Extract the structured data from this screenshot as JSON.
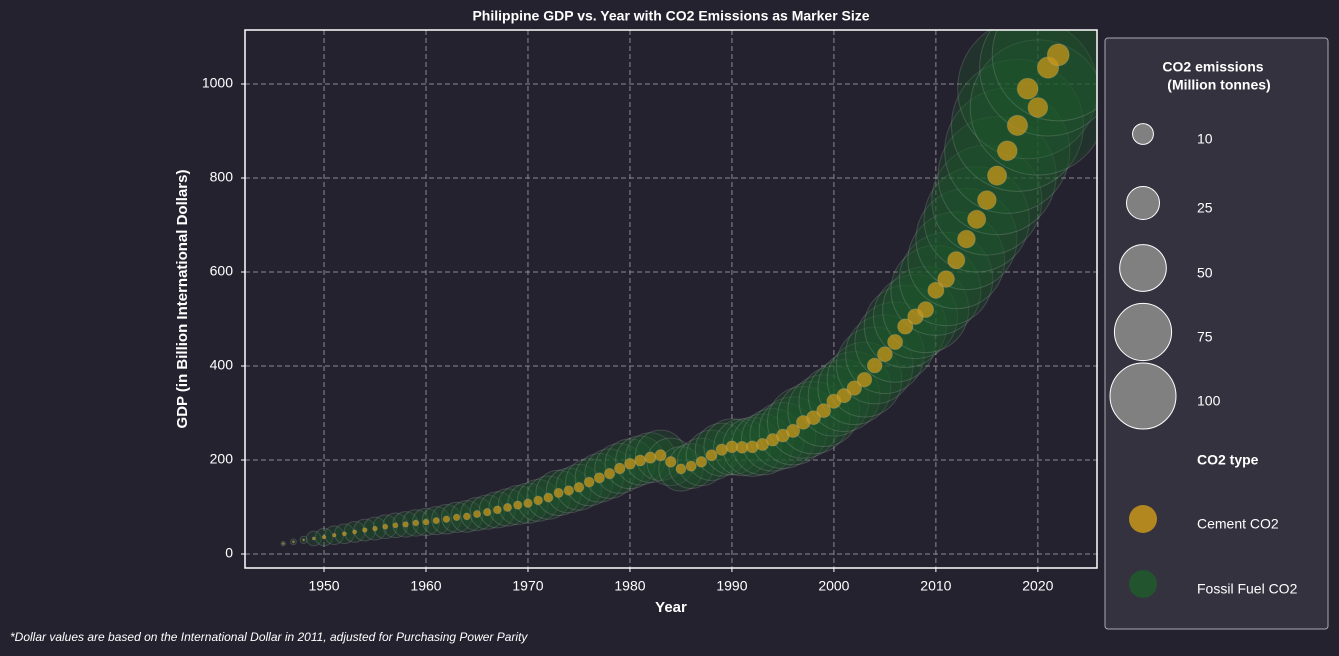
{
  "chart_data": {
    "type": "bubble",
    "title": "Philippine GDP vs. Year with CO2 Emissions as Marker Size",
    "x_label": "Year",
    "y_label": "GDP (in Billion International Dollars)",
    "footnote": "*Dollar values are based on the International Dollar in 2011, adjusted for Purchasing Power Parity",
    "x": [
      1946,
      1947,
      1948,
      1949,
      1950,
      1951,
      1952,
      1953,
      1954,
      1955,
      1956,
      1957,
      1958,
      1959,
      1960,
      1961,
      1962,
      1963,
      1964,
      1965,
      1966,
      1967,
      1968,
      1969,
      1970,
      1971,
      1972,
      1973,
      1974,
      1975,
      1976,
      1977,
      1978,
      1979,
      1980,
      1981,
      1982,
      1983,
      1984,
      1985,
      1986,
      1987,
      1988,
      1989,
      1990,
      1991,
      1992,
      1993,
      1994,
      1995,
      1996,
      1997,
      1998,
      1999,
      2000,
      2001,
      2002,
      2003,
      2004,
      2005,
      2006,
      2007,
      2008,
      2009,
      2010,
      2011,
      2012,
      2013,
      2014,
      2015,
      2016,
      2017,
      2018,
      2019,
      2020,
      2021,
      2022
    ],
    "values": [
      22,
      26,
      30,
      33,
      36,
      40,
      43,
      47,
      51,
      54,
      58,
      61,
      63,
      66,
      68,
      71,
      74,
      78,
      80,
      85,
      89,
      94,
      99,
      104,
      108,
      114,
      120,
      130,
      135,
      142,
      153,
      162,
      171,
      182,
      192,
      199,
      205,
      210,
      196,
      181,
      187,
      196,
      210,
      222,
      228,
      227,
      228,
      233,
      243,
      252,
      262,
      280,
      290,
      305,
      325,
      337,
      353,
      371,
      401,
      425,
      451,
      484,
      505,
      520,
      561,
      585,
      625,
      670,
      712,
      753,
      805,
      858,
      912,
      990,
      950,
      1035,
      1062
    ],
    "series": [
      {
        "name": "Cement CO2",
        "color": "#c8961a",
        "sizes": [
          0.1,
          0.1,
          0.1,
          0.2,
          0.3,
          0.3,
          0.4,
          0.4,
          0.5,
          0.5,
          0.6,
          0.6,
          0.7,
          0.8,
          0.8,
          0.9,
          1.0,
          1.0,
          1.1,
          1.2,
          1.3,
          1.4,
          1.5,
          1.6,
          1.7,
          1.8,
          1.9,
          2.0,
          2.1,
          2.2,
          2.3,
          2.4,
          2.5,
          2.6,
          2.7,
          2.8,
          2.9,
          2.9,
          2.6,
          2.3,
          2.4,
          2.6,
          2.8,
          3.0,
          3.2,
          3.2,
          3.3,
          3.4,
          3.6,
          3.8,
          4.0,
          4.4,
          4.5,
          4.5,
          4.6,
          4.7,
          4.8,
          4.9,
          5.0,
          5.1,
          5.2,
          5.4,
          5.6,
          5.8,
          6.0,
          6.4,
          6.8,
          7.2,
          7.6,
          8.0,
          8.5,
          9.0,
          9.5,
          10.0,
          9.0,
          10.5,
          11.0
        ]
      },
      {
        "name": "Fossil Fuel CO2",
        "color": "#1f5a2b",
        "sizes": [
          0.5,
          0.8,
          1.2,
          5,
          7,
          8,
          9,
          10,
          11,
          12,
          13,
          14,
          15,
          16,
          17,
          18,
          20,
          21,
          23,
          25,
          27,
          30,
          32,
          35,
          37,
          40,
          43,
          47,
          46,
          48,
          51,
          54,
          56,
          57,
          57,
          55,
          57,
          58,
          52,
          45,
          46,
          52,
          58,
          64,
          72,
          74,
          80,
          85,
          90,
          100,
          106,
          118,
          120,
          118,
          112,
          118,
          122,
          128,
          135,
          142,
          148,
          155,
          162,
          170,
          186,
          200,
          215,
          235,
          255,
          278,
          320,
          360,
          400,
          450,
          420,
          430,
          400
        ]
      }
    ],
    "xlim": [
      1942.25,
      2025.8
    ],
    "ylim": [
      -29.8,
      1114.9
    ],
    "xticks": [
      1950,
      1960,
      1970,
      1980,
      1990,
      2000,
      2010,
      2020
    ],
    "yticks": [
      0,
      200,
      400,
      600,
      800,
      1000
    ],
    "grid": true,
    "size_legend": {
      "title": [
        "CO2 emissions",
        "(Million tonnes)"
      ],
      "sizes": [
        10,
        25,
        50,
        75,
        100
      ]
    },
    "color_legend_title": "CO2 type"
  }
}
